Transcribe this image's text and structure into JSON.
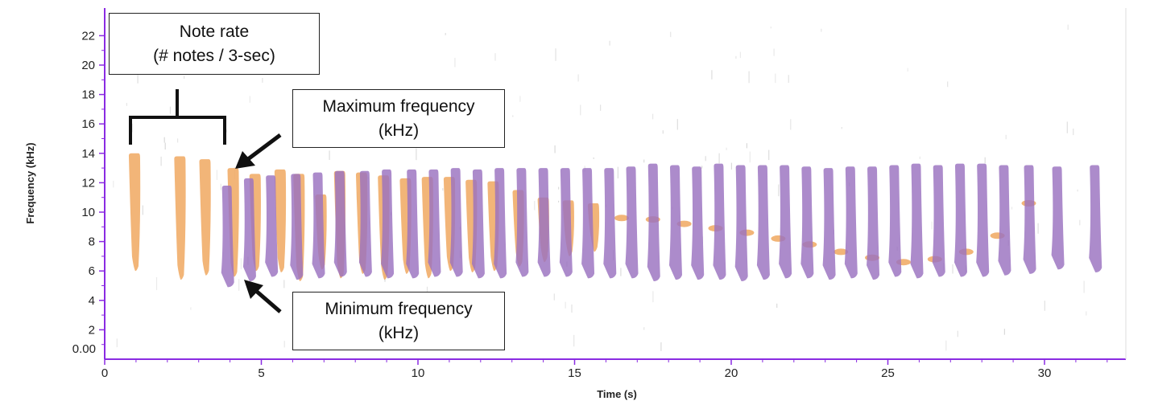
{
  "chart_data": {
    "type": "spectrogram",
    "xlabel": "Time (s)",
    "ylabel": "Frequency (kHz)",
    "xlim": [
      0,
      32.5
    ],
    "ylim": [
      0,
      24
    ],
    "x_ticks": [
      "0",
      "5",
      "10",
      "15",
      "20",
      "25",
      "30"
    ],
    "y_ticks": [
      "2",
      "4",
      "6",
      "8",
      "10",
      "12",
      "14",
      "16",
      "18",
      "20",
      "22"
    ],
    "y_origin_label": "0.00",
    "colors": {
      "axis": "#8a2be2",
      "origin_label": "#1a237e",
      "note_series_a": "#f0a860",
      "note_series_b": "#9a72c0",
      "overlap": "#c0587a"
    },
    "series": [
      {
        "notes": [
          {
            "t": 0.95,
            "max": 14.0,
            "min": 6.0
          },
          {
            "t": 2.4,
            "max": 13.8,
            "min": 5.4
          },
          {
            "t": 3.2,
            "max": 13.6,
            "min": 5.7
          },
          {
            "t": 4.1,
            "max": 13.0,
            "min": 5.6
          },
          {
            "t": 4.8,
            "max": 12.6,
            "min": 6.0
          },
          {
            "t": 5.6,
            "max": 12.9,
            "min": 5.9
          },
          {
            "t": 6.2,
            "max": 12.6,
            "min": 5.3
          },
          {
            "t": 6.9,
            "max": 11.2,
            "min": 6.1
          },
          {
            "t": 7.5,
            "max": 12.8,
            "min": 5.5
          },
          {
            "t": 8.2,
            "max": 12.7,
            "min": 5.8
          },
          {
            "t": 8.9,
            "max": 12.5,
            "min": 5.4
          },
          {
            "t": 9.6,
            "max": 12.3,
            "min": 5.8
          },
          {
            "t": 10.3,
            "max": 12.4,
            "min": 5.5
          },
          {
            "t": 11.0,
            "max": 12.4,
            "min": 6.0
          },
          {
            "t": 11.7,
            "max": 12.2,
            "min": 5.9
          },
          {
            "t": 12.4,
            "max": 12.1,
            "min": 6.0
          },
          {
            "t": 13.2,
            "max": 11.5,
            "min": 6.3
          },
          {
            "t": 14.0,
            "max": 11.0,
            "min": 6.6
          },
          {
            "t": 14.8,
            "max": 10.8,
            "min": 7.0
          },
          {
            "t": 15.6,
            "max": 10.6,
            "min": 7.3
          }
        ],
        "trail": [
          [
            16.5,
            9.6
          ],
          [
            17.5,
            9.5
          ],
          [
            18.5,
            9.2
          ],
          [
            19.5,
            8.9
          ],
          [
            20.5,
            8.6
          ],
          [
            21.5,
            8.2
          ],
          [
            22.5,
            7.8
          ],
          [
            23.5,
            7.3
          ],
          [
            24.5,
            6.9
          ],
          [
            25.5,
            6.6
          ],
          [
            26.5,
            6.8
          ],
          [
            27.5,
            7.3
          ],
          [
            28.5,
            8.4
          ],
          [
            29.5,
            10.6
          ]
        ]
      },
      {
        "notes": [
          {
            "t": 3.9,
            "max": 11.8,
            "min": 4.9
          },
          {
            "t": 4.6,
            "max": 12.3,
            "min": 5.3
          },
          {
            "t": 5.3,
            "max": 12.5,
            "min": 5.6
          },
          {
            "t": 6.1,
            "max": 12.6,
            "min": 5.4
          },
          {
            "t": 6.8,
            "max": 12.7,
            "min": 5.5
          },
          {
            "t": 7.5,
            "max": 12.8,
            "min": 5.6
          },
          {
            "t": 8.3,
            "max": 12.8,
            "min": 5.6
          },
          {
            "t": 9.0,
            "max": 12.9,
            "min": 5.5
          },
          {
            "t": 9.8,
            "max": 12.9,
            "min": 5.5
          },
          {
            "t": 10.5,
            "max": 12.9,
            "min": 5.6
          },
          {
            "t": 11.2,
            "max": 13.0,
            "min": 5.6
          },
          {
            "t": 11.9,
            "max": 12.9,
            "min": 5.5
          },
          {
            "t": 12.6,
            "max": 13.0,
            "min": 5.5
          },
          {
            "t": 13.3,
            "max": 13.0,
            "min": 5.6
          },
          {
            "t": 14.0,
            "max": 13.0,
            "min": 5.6
          },
          {
            "t": 14.7,
            "max": 13.0,
            "min": 5.6
          },
          {
            "t": 15.4,
            "max": 13.0,
            "min": 5.5
          },
          {
            "t": 16.1,
            "max": 13.0,
            "min": 5.5
          },
          {
            "t": 16.8,
            "max": 13.1,
            "min": 5.5
          },
          {
            "t": 17.5,
            "max": 13.3,
            "min": 5.3
          },
          {
            "t": 18.2,
            "max": 13.2,
            "min": 5.4
          },
          {
            "t": 18.9,
            "max": 13.1,
            "min": 5.4
          },
          {
            "t": 19.6,
            "max": 13.3,
            "min": 5.4
          },
          {
            "t": 20.3,
            "max": 13.2,
            "min": 5.3
          },
          {
            "t": 21.0,
            "max": 13.2,
            "min": 5.4
          },
          {
            "t": 21.7,
            "max": 13.2,
            "min": 5.5
          },
          {
            "t": 22.4,
            "max": 13.1,
            "min": 5.5
          },
          {
            "t": 23.1,
            "max": 13.0,
            "min": 5.4
          },
          {
            "t": 23.8,
            "max": 13.1,
            "min": 5.5
          },
          {
            "t": 24.5,
            "max": 13.1,
            "min": 5.4
          },
          {
            "t": 25.2,
            "max": 13.2,
            "min": 5.6
          },
          {
            "t": 25.9,
            "max": 13.3,
            "min": 5.5
          },
          {
            "t": 26.6,
            "max": 13.2,
            "min": 5.6
          },
          {
            "t": 27.3,
            "max": 13.3,
            "min": 5.6
          },
          {
            "t": 28.0,
            "max": 13.3,
            "min": 5.6
          },
          {
            "t": 28.7,
            "max": 13.2,
            "min": 5.7
          },
          {
            "t": 29.5,
            "max": 13.2,
            "min": 5.8
          },
          {
            "t": 30.4,
            "max": 13.1,
            "min": 6.1
          },
          {
            "t": 31.6,
            "max": 13.2,
            "min": 5.9
          }
        ]
      }
    ],
    "annotations": {
      "note_rate": {
        "line1": "Note rate",
        "line2": "(# notes / 3-sec)"
      },
      "max_freq": {
        "line1": "Maximum frequency",
        "line2": "(kHz)"
      },
      "min_freq": {
        "line1": "Minimum frequency",
        "line2": "(kHz)"
      }
    }
  }
}
